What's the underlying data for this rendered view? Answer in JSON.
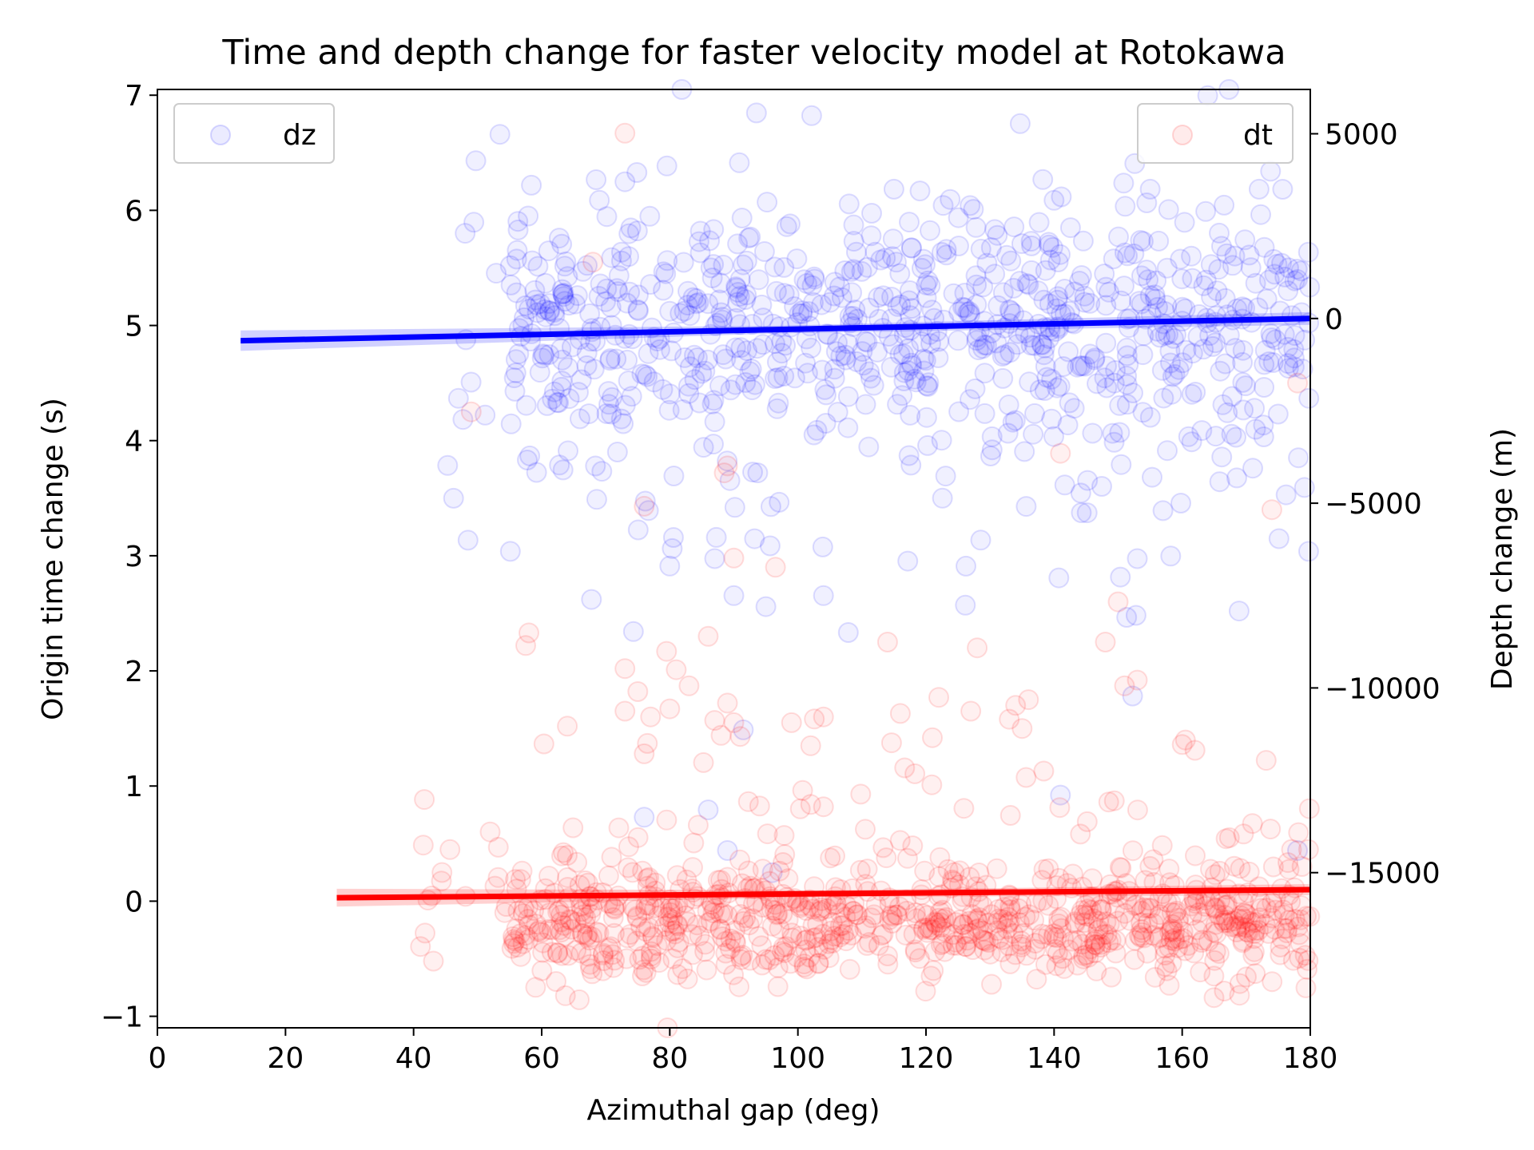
{
  "chart_data": {
    "type": "scatter",
    "title": "Time and depth change for faster velocity model at Rotokawa",
    "xlabel": "Azimuthal gap (deg)",
    "ylabel_left": "Origin time change (s)",
    "ylabel_right": "Depth change (m)",
    "xlim": [
      0,
      180
    ],
    "ylim_left": [
      -1.1,
      7.05
    ],
    "ylim_right": [
      -19200,
      6200
    ],
    "x_ticks": [
      0,
      20,
      40,
      60,
      80,
      100,
      120,
      140,
      160,
      180
    ],
    "y_ticks_left": [
      -1,
      0,
      1,
      2,
      3,
      4,
      5,
      6,
      7
    ],
    "y_ticks_right": [
      5000,
      0,
      -5000,
      -10000,
      -15000
    ],
    "y_tick_labels_right": [
      "5000",
      "0",
      "−5000",
      "−10000",
      "−15000"
    ],
    "y_tick_labels_left": [
      "−1",
      "0",
      "1",
      "2",
      "3",
      "4",
      "5",
      "6",
      "7"
    ],
    "grid": false,
    "series": [
      {
        "name": "dz",
        "axis": "right",
        "color": "#0000ff",
        "legend_position": "upper-left",
        "fit_line": {
          "x": [
            13,
            180
          ],
          "y": [
            -600,
            0
          ]
        },
        "clusters": [
          {
            "x_range": [
              55,
              180
            ],
            "y_center": 0,
            "y_spread": 1400,
            "count": 600
          },
          {
            "x_range": [
              45,
              180
            ],
            "y_center": -1800,
            "y_spread": 3200,
            "count": 220
          }
        ],
        "points": [
          [
            48.5,
            -6000
          ],
          [
            90,
            -7500
          ],
          [
            95,
            -7800
          ],
          [
            104,
            -7500
          ],
          [
            80,
            -6700
          ],
          [
            87,
            -6500
          ],
          [
            157,
            -5200
          ],
          [
            153,
            -6500
          ],
          [
            115,
            3500
          ],
          [
            69,
            3200
          ],
          [
            73,
            3700
          ],
          [
            161,
            -3200
          ],
          [
            155,
            3500
          ],
          [
            140,
            3200
          ],
          [
            172,
            3500
          ],
          [
            108,
            3100
          ],
          [
            89,
            -14400
          ],
          [
            96,
            -15000
          ],
          [
            86,
            -13300
          ],
          [
            76,
            -13500
          ],
          [
            141,
            -12900
          ],
          [
            178,
            -14400
          ]
        ]
      },
      {
        "name": "dt",
        "axis": "left",
        "color": "#ff0000",
        "legend_position": "upper-right",
        "fit_line": {
          "x": [
            28,
            180
          ],
          "y": [
            0.03,
            0.1
          ]
        },
        "clusters": [
          {
            "x_range": [
              55,
              180
            ],
            "y_center": -0.2,
            "y_spread": 0.22,
            "count": 650
          },
          {
            "x_range": [
              40,
              180
            ],
            "y_center": 0.1,
            "y_spread": 0.5,
            "count": 200
          }
        ],
        "points": [
          [
            73,
            6.67
          ],
          [
            49,
            4.25
          ],
          [
            58,
            2.33
          ],
          [
            57.5,
            2.22
          ],
          [
            64,
            1.52
          ],
          [
            73,
            2.02
          ],
          [
            73,
            1.65
          ],
          [
            75,
            1.82
          ],
          [
            76.5,
            1.37
          ],
          [
            76,
            1.28
          ],
          [
            77,
            1.6
          ],
          [
            79.5,
            2.17
          ],
          [
            80,
            1.67
          ],
          [
            81,
            2.01
          ],
          [
            83,
            1.87
          ],
          [
            86,
            2.3
          ],
          [
            87,
            1.57
          ],
          [
            88,
            1.44
          ],
          [
            89,
            1.72
          ],
          [
            90,
            1.55
          ],
          [
            91,
            1.43
          ],
          [
            99,
            1.55
          ],
          [
            102,
            1.35
          ],
          [
            104,
            1.6
          ],
          [
            114,
            2.25
          ],
          [
            116,
            1.63
          ],
          [
            121,
            1.42
          ],
          [
            122,
            1.77
          ],
          [
            127,
            1.65
          ],
          [
            133,
            1.58
          ],
          [
            134,
            1.7
          ],
          [
            135,
            1.5
          ],
          [
            136,
            1.75
          ],
          [
            128,
            2.2
          ],
          [
            148,
            2.25
          ],
          [
            150,
            2.6
          ],
          [
            151,
            1.87
          ],
          [
            153,
            1.92
          ],
          [
            160,
            1.36
          ],
          [
            160.5,
            1.4
          ],
          [
            162,
            1.31
          ],
          [
            174,
            3.4
          ],
          [
            96.5,
            2.9
          ],
          [
            90,
            2.98
          ],
          [
            89,
            3.78
          ],
          [
            88.5,
            3.72
          ],
          [
            76,
            3.43
          ],
          [
            141,
            3.89
          ],
          [
            178,
            4.5
          ],
          [
            68,
            5.55
          ],
          [
            104,
            0.82
          ],
          [
            102,
            0.84
          ]
        ]
      }
    ]
  }
}
